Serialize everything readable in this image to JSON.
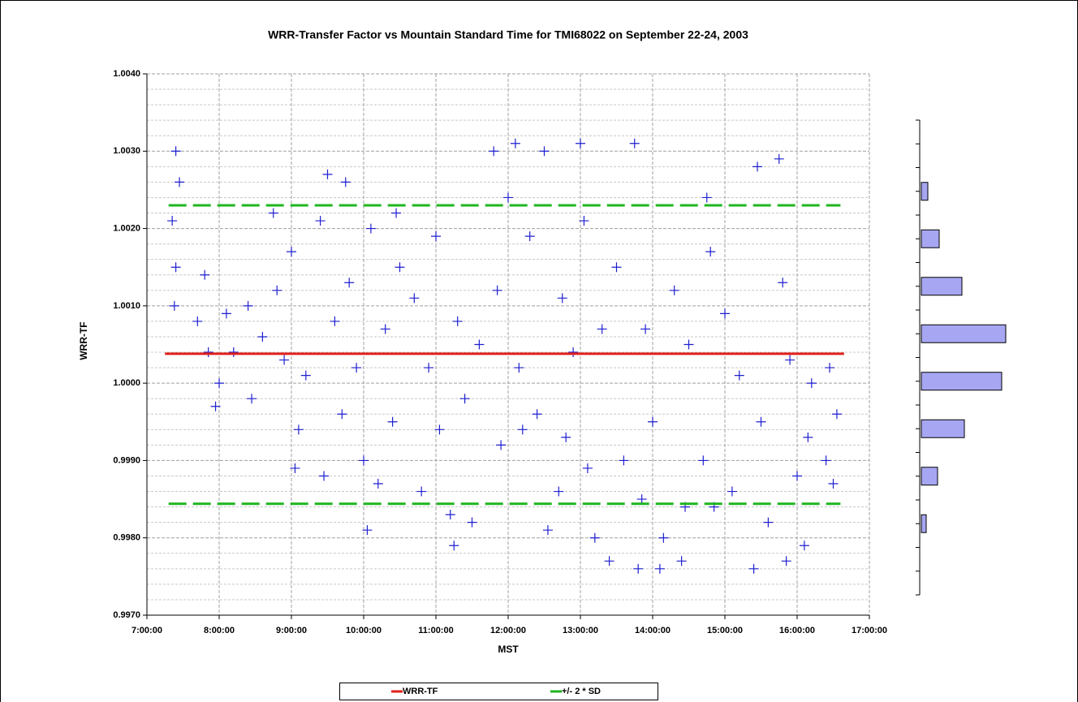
{
  "chart_data": [
    {
      "type": "scatter",
      "title": "WRR-Transfer Factor vs Mountain Standard Time for TMI68022 on September 22-24, 2003",
      "x_label": "MST",
      "y_label": "WRR-TF",
      "xlim": [
        7,
        17
      ],
      "xticks": [
        {
          "value": 7,
          "label": "7:00:00"
        },
        {
          "value": 8,
          "label": "8:00:00"
        },
        {
          "value": 9,
          "label": "9:00:00"
        },
        {
          "value": 10,
          "label": "10:00:00"
        },
        {
          "value": 11,
          "label": "11:00:00"
        },
        {
          "value": 12,
          "label": "12:00:00"
        },
        {
          "value": 13,
          "label": "13:00:00"
        },
        {
          "value": 14,
          "label": "14:00:00"
        },
        {
          "value": 15,
          "label": "15:00:00"
        },
        {
          "value": 16,
          "label": "16:00:00"
        },
        {
          "value": 17,
          "label": "17:00:00"
        }
      ],
      "ylim": [
        0.997,
        1.004
      ],
      "yticks": [
        {
          "value": 0.997,
          "label": "0.9970"
        },
        {
          "value": 0.998,
          "label": "0.9980"
        },
        {
          "value": 0.999,
          "label": "0.9990"
        },
        {
          "value": 1.0,
          "label": "1.0000"
        },
        {
          "value": 1.001,
          "label": "1.0010"
        },
        {
          "value": 1.002,
          "label": "1.0020"
        },
        {
          "value": 1.003,
          "label": "1.0030"
        },
        {
          "value": 1.004,
          "label": "1.0040"
        }
      ],
      "minor_yticks": [
        0.9972,
        0.9974,
        0.9976,
        0.9978,
        0.9982,
        0.9984,
        0.9986,
        0.9988,
        0.9992,
        0.9994,
        0.9996,
        0.9998,
        1.0002,
        1.0004,
        1.0006,
        1.0008,
        1.0012,
        1.0014,
        1.0016,
        1.0018,
        1.0022,
        1.0024,
        1.0026,
        1.0028,
        1.0032,
        1.0034,
        1.0036,
        1.0038
      ],
      "grid": true,
      "legend": "bottom",
      "series": [
        {
          "color": "#1f1fd0",
          "marker": "+",
          "x": [
            7.4,
            7.35,
            7.4,
            7.38,
            7.45,
            7.7,
            7.8,
            7.85,
            8.0,
            7.95,
            8.1,
            8.2,
            8.4,
            8.45,
            8.6,
            8.75,
            8.8,
            8.9,
            9.0,
            9.1,
            9.05,
            9.2,
            9.4,
            9.5,
            9.45,
            9.6,
            9.75,
            9.8,
            9.7,
            9.9,
            10.0,
            10.05,
            10.1,
            10.2,
            10.3,
            10.45,
            10.5,
            10.4,
            10.7,
            10.8,
            10.9,
            11.0,
            11.05,
            11.2,
            11.25,
            11.3,
            11.4,
            11.5,
            11.6,
            11.8,
            11.85,
            11.9,
            12.0,
            12.1,
            12.15,
            12.2,
            12.3,
            12.4,
            12.5,
            12.55,
            12.7,
            12.75,
            12.8,
            12.9,
            13.0,
            13.05,
            13.1,
            13.2,
            13.3,
            13.4,
            13.5,
            13.6,
            13.75,
            13.8,
            13.85,
            13.9,
            14.0,
            14.1,
            14.15,
            14.3,
            14.4,
            14.45,
            14.5,
            14.7,
            14.75,
            14.8,
            14.85,
            15.0,
            15.1,
            15.2,
            15.4,
            15.45,
            15.5,
            15.6,
            15.75,
            15.8,
            15.85,
            15.9,
            16.0,
            16.1,
            16.15,
            16.2,
            16.4,
            16.5,
            16.45,
            16.55
          ],
          "values": [
            1.003,
            1.0021,
            1.0015,
            1.001,
            1.0026,
            1.0008,
            1.0014,
            1.0004,
            1.0,
            0.9997,
            1.0009,
            1.0004,
            1.001,
            0.9998,
            1.0006,
            1.0022,
            1.0012,
            1.0003,
            1.0017,
            0.9994,
            0.9989,
            1.0001,
            1.0021,
            1.0027,
            0.9988,
            1.0008,
            1.0026,
            1.0013,
            0.9996,
            1.0002,
            0.999,
            0.9981,
            1.002,
            0.9987,
            1.0007,
            1.0022,
            1.0015,
            0.9995,
            1.0011,
            0.9986,
            1.0002,
            1.0019,
            0.9994,
            0.9983,
            0.9979,
            1.0008,
            0.9998,
            0.9982,
            1.0005,
            1.003,
            1.0012,
            0.9992,
            1.0024,
            1.0031,
            1.0002,
            0.9994,
            1.0019,
            0.9996,
            1.003,
            0.9981,
            0.9986,
            1.0011,
            0.9993,
            1.0004,
            1.0031,
            1.0021,
            0.9989,
            0.998,
            1.0007,
            0.9977,
            1.0015,
            0.999,
            1.0031,
            0.9976,
            0.9985,
            1.0007,
            0.9995,
            0.9976,
            0.998,
            1.0012,
            0.9977,
            0.9984,
            1.0005,
            0.999,
            1.0024,
            1.0017,
            0.9984,
            1.0009,
            0.9986,
            1.0001,
            0.9976,
            1.0028,
            0.9995,
            0.9982,
            1.0029,
            1.0013,
            0.9977,
            1.0003,
            0.9988,
            0.9979,
            0.9993,
            1.0,
            0.999,
            0.9987,
            1.0002,
            0.9996
          ]
        },
        {
          "name": "WRR-TF",
          "color": "#e0201b",
          "marker": "line",
          "x": [
            7.25,
            16.65
          ],
          "values": [
            1.00038,
            1.00038
          ]
        },
        {
          "name": "+/- 2 * SD",
          "color": "#1fb51f",
          "marker": "dash",
          "x": [
            7.3,
            16.6,
            16.6,
            7.3,
            16.6
          ],
          "values": [
            1.0023,
            1.0023,
            null,
            0.99844,
            0.99844
          ]
        }
      ]
    },
    {
      "type": "bar",
      "orientation": "horizontal",
      "color": "#a6a6f2",
      "categories": [
        null,
        null,
        null,
        null,
        null,
        null,
        null,
        null,
        null,
        null
      ],
      "values": [
        0,
        8,
        22,
        50,
        104,
        99,
        53,
        20,
        6,
        0
      ],
      "xlim": [
        0,
        110
      ]
    }
  ]
}
